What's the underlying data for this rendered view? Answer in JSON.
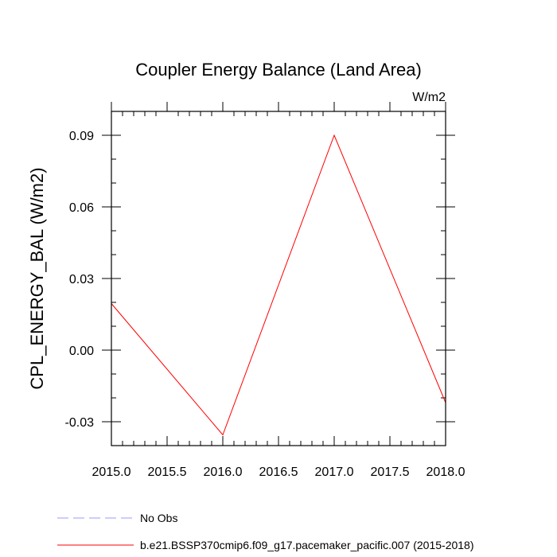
{
  "chart_data": {
    "type": "line",
    "title": "Coupler Energy Balance (Land Area)",
    "units_label": "W/m2",
    "ylabel": "CPL_ENERGY_BAL  (W/m2)",
    "xlabel": "",
    "xlim": [
      2015.0,
      2018.0
    ],
    "ylim": [
      -0.04,
      0.1
    ],
    "xticks": [
      2015.0,
      2015.5,
      2016.0,
      2016.5,
      2017.0,
      2017.5,
      2018.0
    ],
    "xtick_labels": [
      "2015.0",
      "2015.5",
      "2016.0",
      "2016.5",
      "2017.0",
      "2017.5",
      "2018.0"
    ],
    "yticks": [
      -0.03,
      0.0,
      0.03,
      0.06,
      0.09
    ],
    "ytick_labels": [
      "-0.03",
      "0.00",
      "0.03",
      "0.06",
      "0.09"
    ],
    "grid": false,
    "series": [
      {
        "name": "b.e21.BSSP370cmip6.f09_g17.pacemaker_pacific.007 (2015-2018)",
        "color": "#ff0000",
        "style": "solid",
        "x": [
          2015.0,
          2016.0,
          2017.0,
          2018.0
        ],
        "values": [
          0.0195,
          -0.0355,
          0.09,
          -0.022
        ]
      },
      {
        "name": "No Obs",
        "color": "#9999ff",
        "style": "dashed",
        "x": [],
        "values": []
      }
    ]
  }
}
